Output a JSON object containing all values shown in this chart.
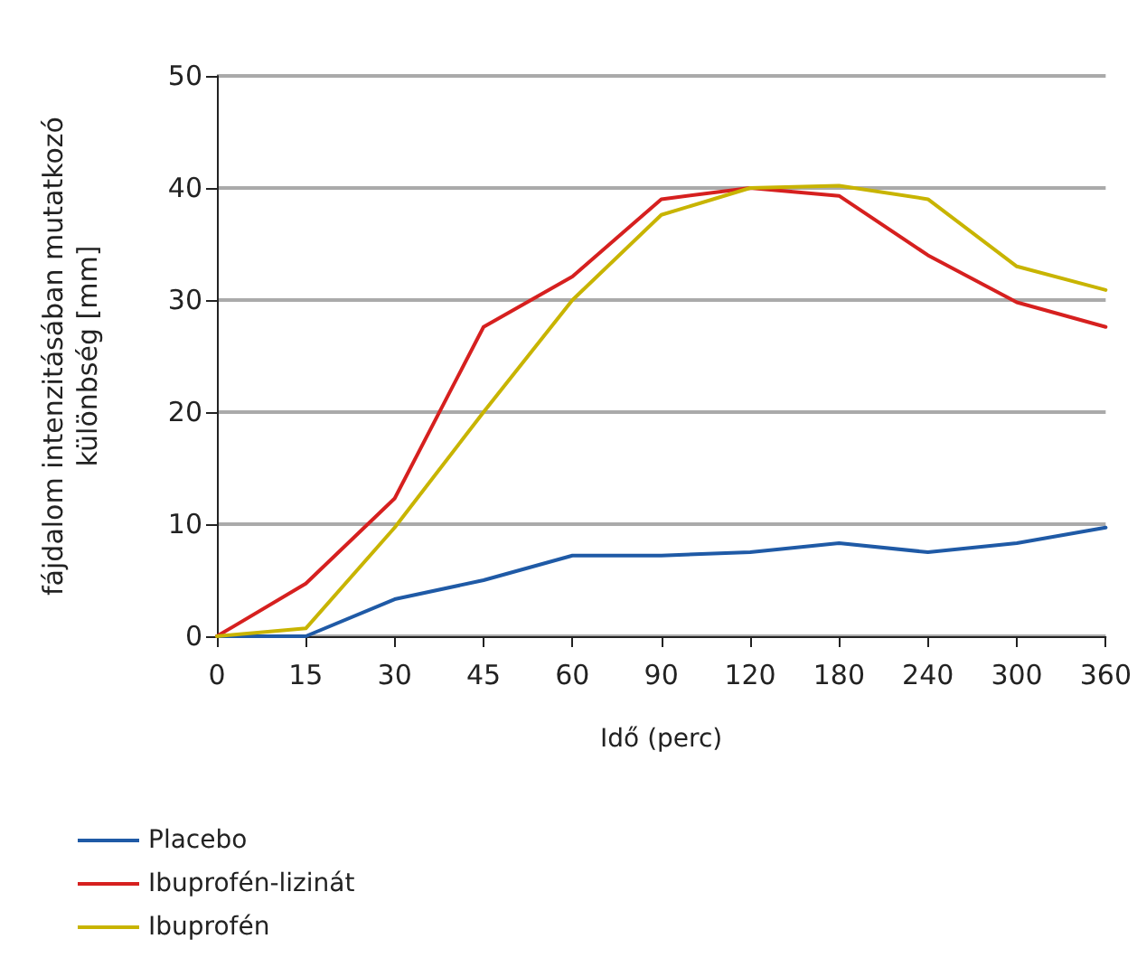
{
  "chart_data": {
    "type": "line",
    "xlabel": "Idő (perc)",
    "ylabel": "fájdalom intenzitásában mutatkozó különbség [mm]",
    "categories": [
      "0",
      "15",
      "30",
      "45",
      "60",
      "90",
      "120",
      "180",
      "240",
      "300",
      "360"
    ],
    "series": [
      {
        "name": "Placebo",
        "color": "#1f5aa6",
        "values": [
          0,
          0,
          3.3,
          5,
          7.2,
          7.2,
          7.5,
          8.3,
          7.5,
          8.3,
          9.7
        ]
      },
      {
        "name": "Ibuprofén-lizinát",
        "color": "#d6201f",
        "values": [
          0,
          4.7,
          12.3,
          27.6,
          32.1,
          39,
          40,
          39.3,
          34,
          29.8,
          27.6
        ]
      },
      {
        "name": "Ibuprofén",
        "color": "#c8b400",
        "values": [
          0,
          0.7,
          9.7,
          20,
          30,
          37.6,
          40,
          40.2,
          39,
          33,
          30.9
        ]
      }
    ],
    "ylim": [
      0,
      50
    ],
    "yticks": [
      0,
      10,
      20,
      30,
      40,
      50
    ],
    "grid": "y",
    "legend": "bottom left",
    "marker": "none",
    "line_style": "solid"
  }
}
